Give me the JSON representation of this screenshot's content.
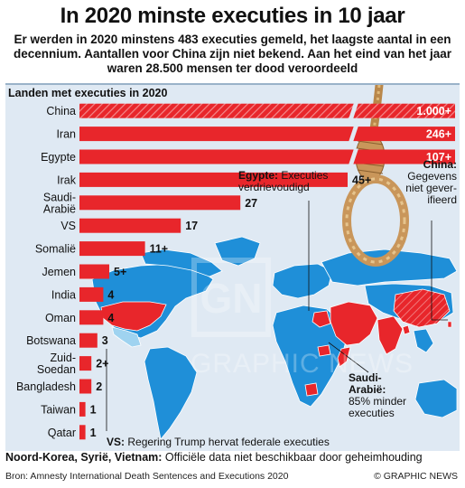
{
  "header": {
    "title": "In 2020 minste executies in 10 jaar",
    "subtitle": "Er werden in 2020 minstens 483 executies gemeld, het laagste aantal in een decennium. Aantallen voor China zijn niet bekend. Aan het eind van het jaar waren 28.500 mensen ter dood veroordeeld"
  },
  "chart_data": {
    "type": "bar",
    "orientation": "horizontal",
    "title": "Landen met executies in 2020",
    "categories": [
      "China",
      "Iran",
      "Egypte",
      "Irak",
      "Saudi-\nArabië",
      "VS",
      "Somalië",
      "Jemen",
      "India",
      "Oman",
      "Botswana",
      "Zuid-\nSoedan",
      "Bangladesh",
      "Taiwan",
      "Qatar"
    ],
    "values": [
      1000,
      246,
      107,
      45,
      27,
      17,
      11,
      5,
      4,
      4,
      3,
      2,
      2,
      1,
      1
    ],
    "labels": [
      "1.000+",
      "246+",
      "107+",
      "45+",
      "27",
      "17",
      "11+",
      "5+",
      "4",
      "4",
      "3",
      "2+",
      "2",
      "1",
      "1"
    ],
    "broken_axis_categories": [
      "China",
      "Iran",
      "Egypte"
    ],
    "hatched_categories": [
      "China"
    ],
    "colors": {
      "bar": "#e8262b",
      "panel": "#dfe9f3",
      "map_ocean": "#dfe9f3",
      "map_land": "#1f8fd8",
      "map_highlight": "#e8262b"
    }
  },
  "annotations": {
    "egypt": {
      "bold": "Egypte:",
      "text": "Executies verdrievoudigd"
    },
    "china": {
      "bold": "China:",
      "text": "Gegevens niet gever-ifieerd"
    },
    "saudi": {
      "bold": "Saudi-Arabië:",
      "text": "85% minder executies"
    },
    "vs": {
      "bold": "VS:",
      "text": "Regering Trump hervat federale executies"
    }
  },
  "footer": {
    "note_bold": "Noord-Korea, Syrië, Vietnam:",
    "note_text": "Officiële data niet beschikbaar door geheimhouding",
    "source": "Bron: Amnesty International Death Sentences and Executions 2020",
    "brand": "© GRAPHIC NEWS"
  },
  "watermark": {
    "text": "GRAPHIC NEWS",
    "logo": "GN"
  }
}
